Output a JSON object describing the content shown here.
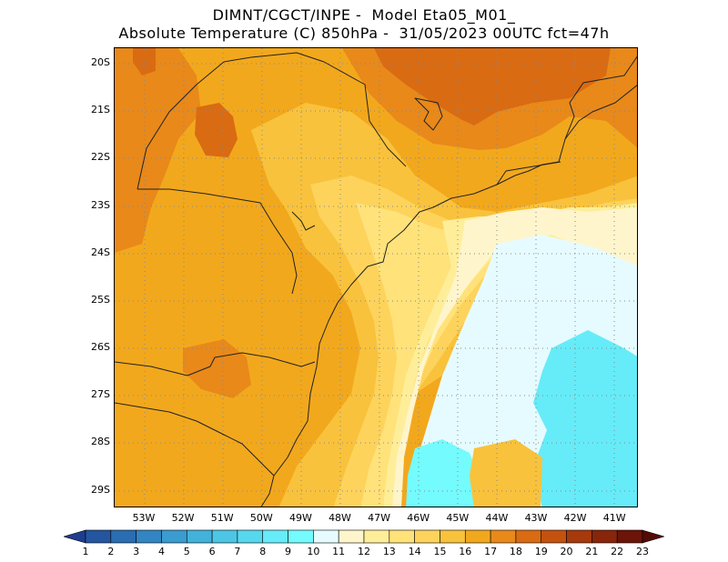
{
  "title": {
    "line1": "DIMNT/CGCT/INPE -  Model Eta05_M01_",
    "line2": "Absolute Temperature (C) 850hPa -  31/05/2023 00UTC fct=47h"
  },
  "latitude_labels": [
    "20S",
    "21S",
    "22S",
    "23S",
    "24S",
    "25S",
    "26S",
    "27S",
    "28S",
    "29S"
  ],
  "longitude_labels": [
    "53W",
    "52W",
    "51W",
    "50W",
    "49W",
    "48W",
    "47W",
    "46W",
    "45W",
    "44W",
    "43W",
    "42W",
    "41W"
  ],
  "colorbar": {
    "values": [
      "1",
      "2",
      "3",
      "4",
      "5",
      "6",
      "7",
      "8",
      "9",
      "10",
      "11",
      "12",
      "13",
      "14",
      "15",
      "16",
      "17",
      "18",
      "19",
      "20",
      "21",
      "22",
      "23"
    ],
    "colors": [
      "#1f3d8f",
      "#2456a0",
      "#2a6db2",
      "#3285c2",
      "#3a9ccf",
      "#42b2da",
      "#4cc6e4",
      "#56d8ee",
      "#66ecf8",
      "#74fbfd",
      "#e6fbff",
      "#fff5cc",
      "#ffee99",
      "#ffe27a",
      "#fdd35c",
      "#f9c23c",
      "#f2a81d",
      "#e8891a",
      "#d96b13",
      "#c4520f",
      "#a63a0d",
      "#88260b",
      "#6c1408",
      "#540a05"
    ]
  },
  "map": {
    "field": "Absolute Temperature (C) 850hPa",
    "region": "Southeastern / Southern Brazil and adjacent Atlantic",
    "level_colors": {
      "c11": "#e6fbff",
      "c12": "#fff5cc",
      "c13": "#ffee99",
      "c14": "#ffe27a",
      "c15": "#fdd35c",
      "c16": "#f9c23c",
      "c17": "#f2a81d",
      "c18": "#e8891a",
      "c19": "#d96b13",
      "cyan": "#66ecf8"
    }
  }
}
